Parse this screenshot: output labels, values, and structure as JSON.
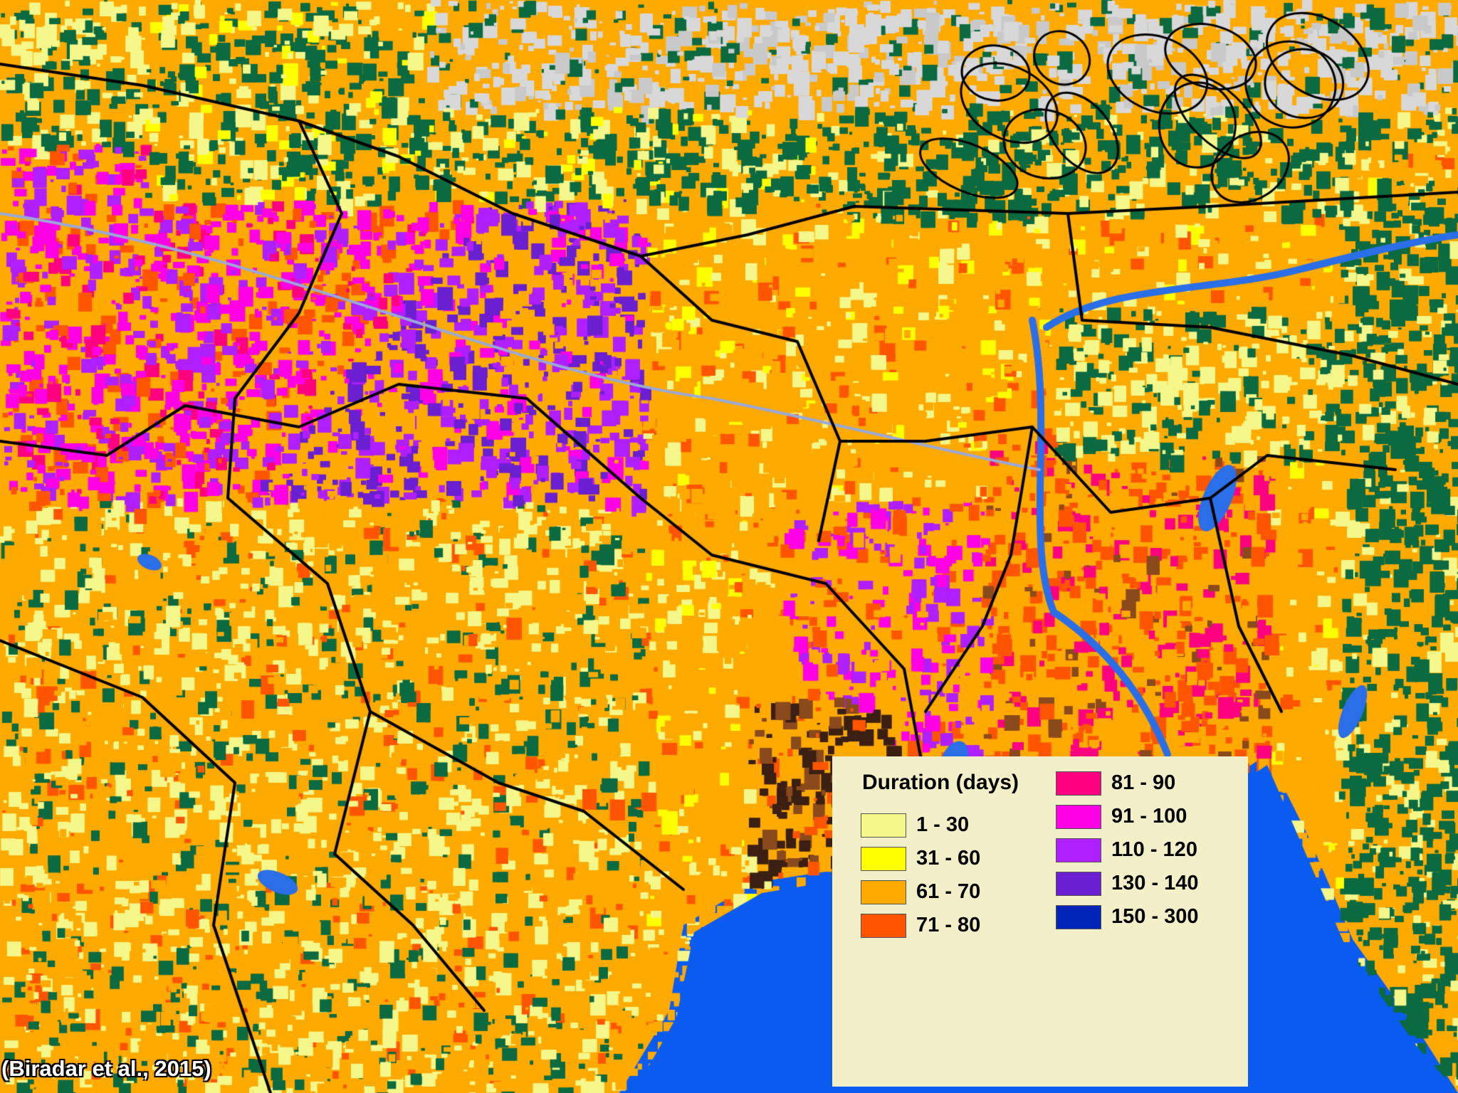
{
  "legend": {
    "title": "Duration (days)",
    "items": [
      {
        "label": "1 - 30",
        "color": "#f6f78a"
      },
      {
        "label": "31 - 60",
        "color": "#ffff00"
      },
      {
        "label": "61 - 70",
        "color": "#ffaa00"
      },
      {
        "label": "71 - 80",
        "color": "#ff5500"
      },
      {
        "label": "81 - 90",
        "color": "#ff0080"
      },
      {
        "label": "91 - 100",
        "color": "#ff00e6"
      },
      {
        "label": "110 - 120",
        "color": "#b01fff"
      },
      {
        "label": "130 - 140",
        "color": "#6a1fd0"
      },
      {
        "label": "150 - 300",
        "color": "#0024b8"
      }
    ]
  },
  "citation": "(Biradar et al., 2015)",
  "map_colors": {
    "sea": "#0a5cf0",
    "forest": "#0b6a40",
    "snow": "#d8d8d8",
    "water": "#2a6ee8",
    "mangrove": "#3a1f12",
    "fallow": "#8a4a1c",
    "boundary": "#000000",
    "river": "#9aa9d8"
  }
}
